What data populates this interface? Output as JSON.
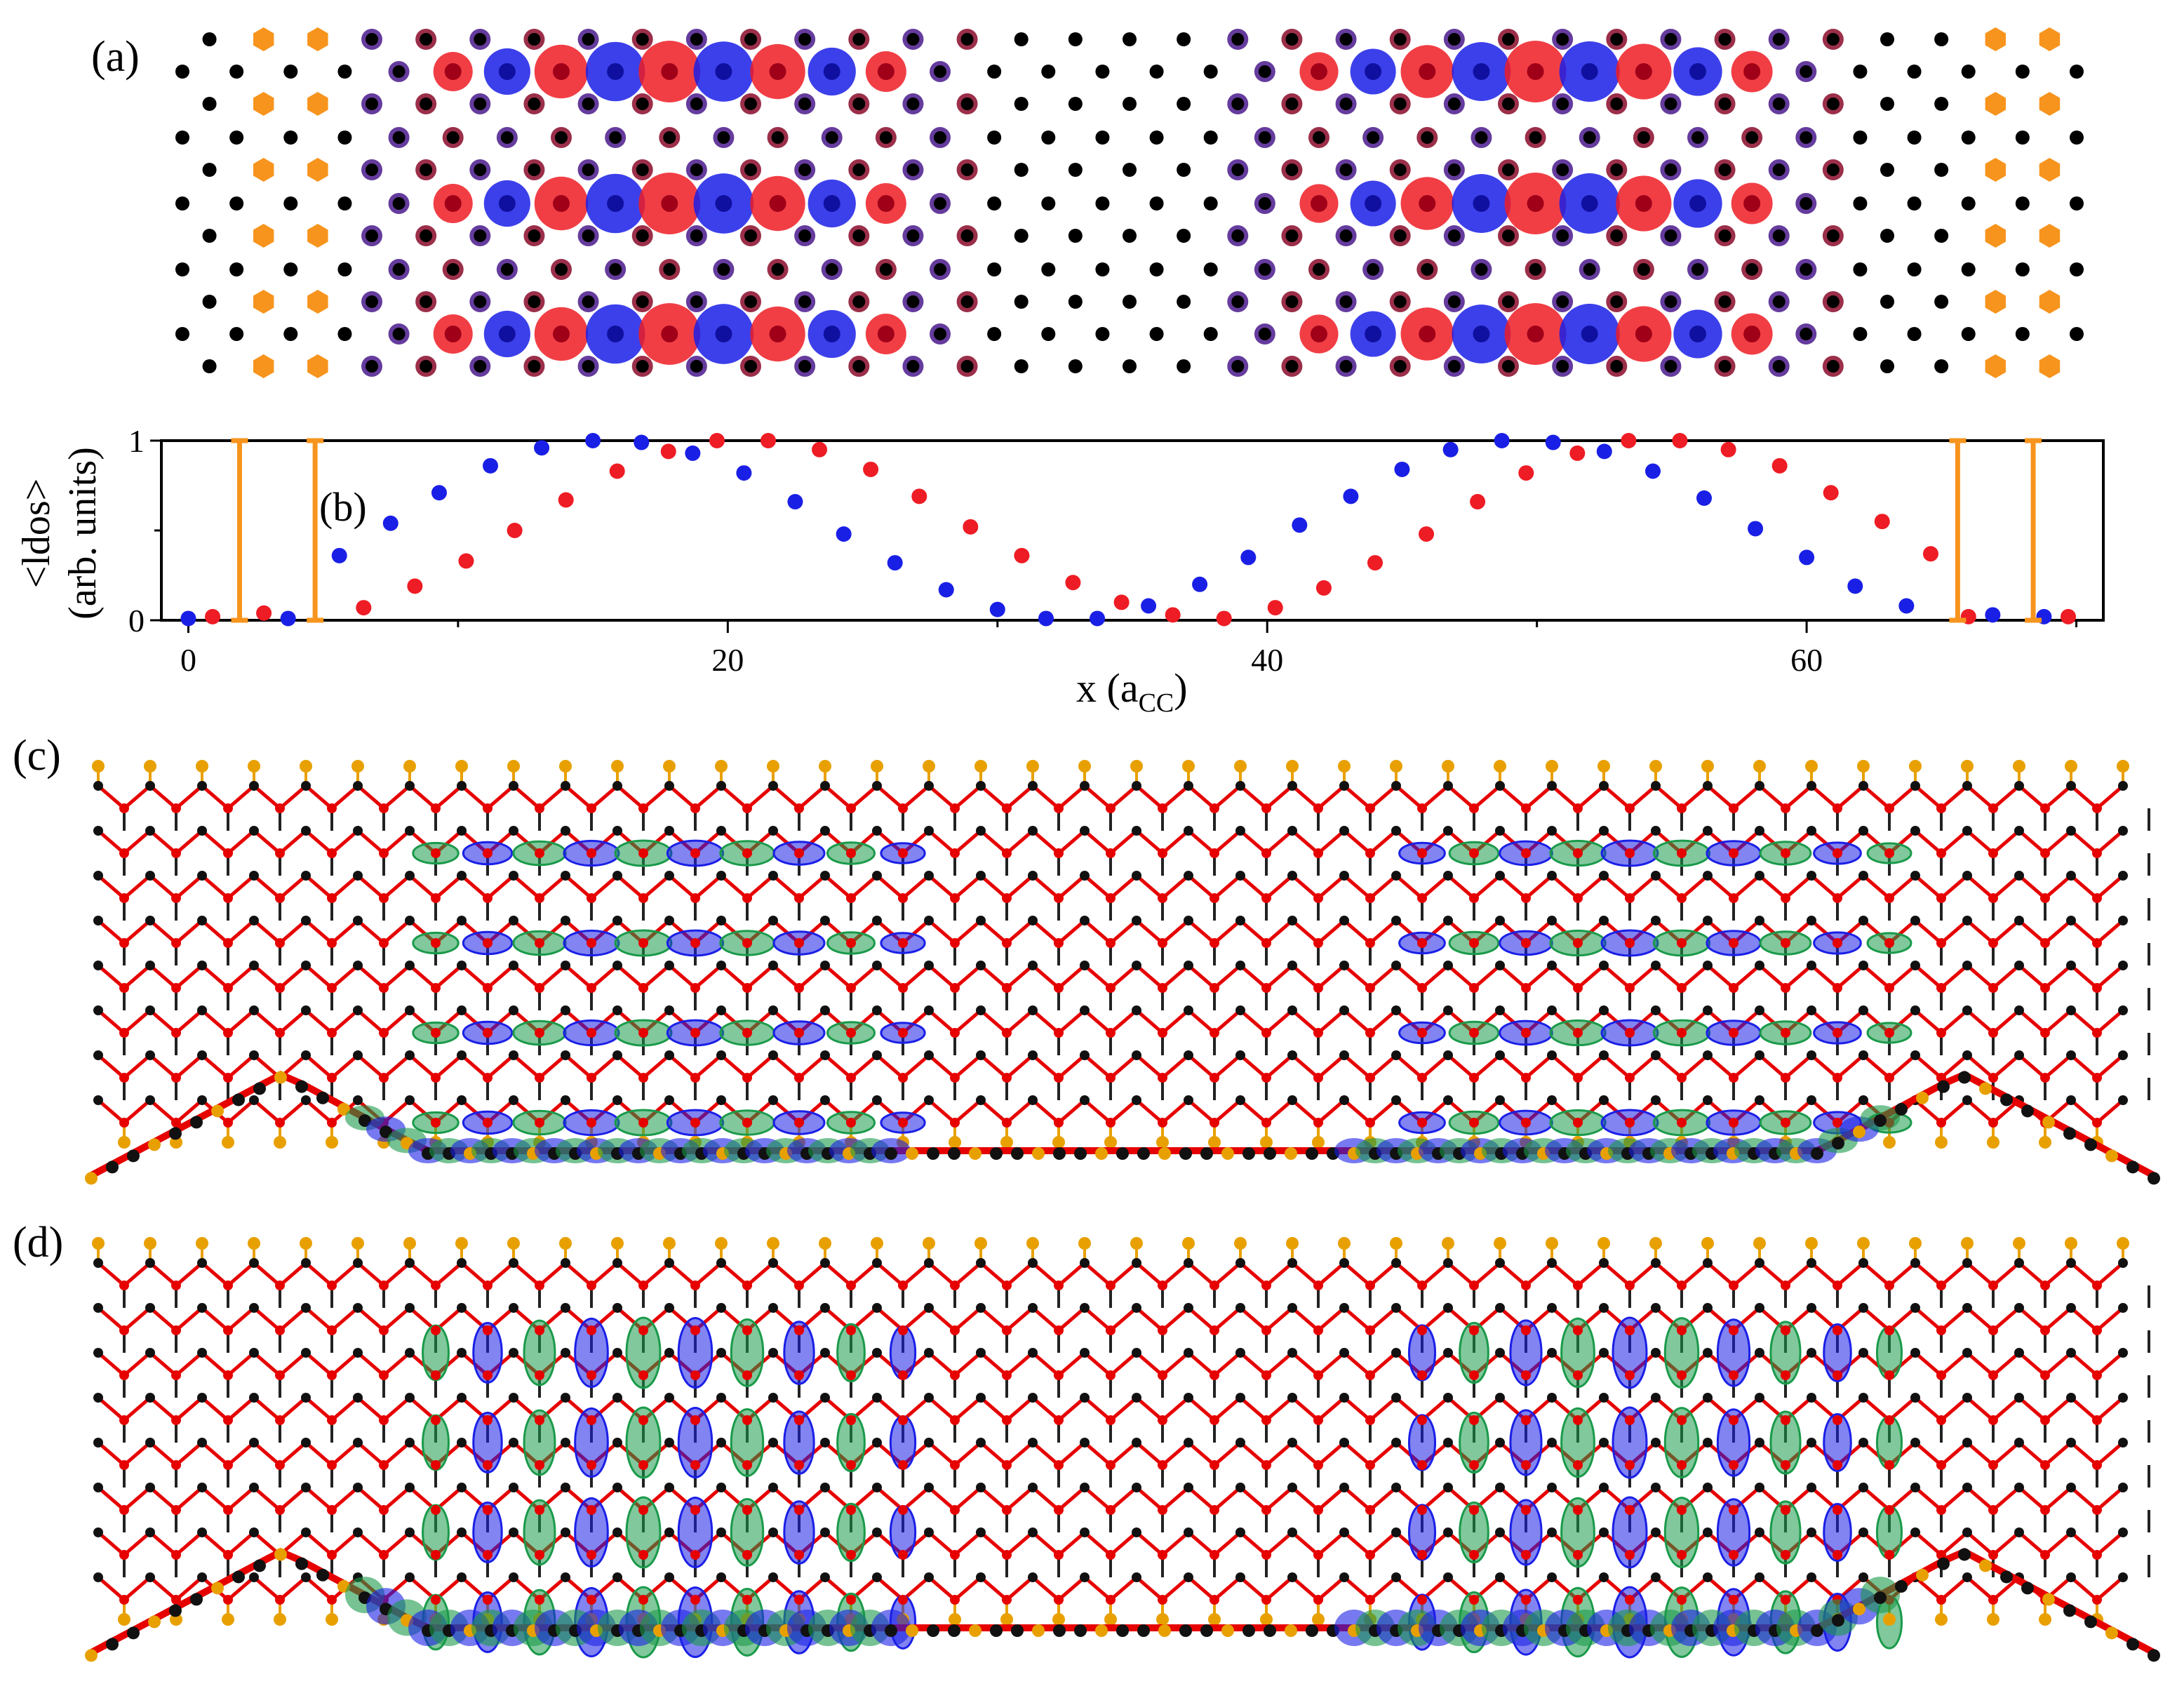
{
  "figure": {
    "panels": {
      "a": "(a)",
      "b": "(b)",
      "c": "(c)",
      "d": "(d)"
    }
  },
  "colors": {
    "blue": "#1a1fe6",
    "red": "#ee1c24",
    "orange": "#f7941d",
    "black": "#000000",
    "purple": "#4a1a8c",
    "maroon": "#8a0a2a",
    "green": "#1a9a4a",
    "bond_red": "#e60000",
    "hydrogen": "#e8a000"
  },
  "chart_data": {
    "type": "scatter",
    "xlabel": "x (a",
    "xlabel_sub": "CC",
    "xlabel_close": ")",
    "ylabel_line1": "<ldos>",
    "ylabel_line2": "(arb. units)",
    "xlim": [
      -1,
      71
    ],
    "ylim": [
      0,
      1
    ],
    "x_ticks": [
      0,
      20,
      40,
      60
    ],
    "y_ticks": [
      0,
      1
    ],
    "series": [
      {
        "color": "blue",
        "points": [
          [
            0,
            0.01
          ],
          [
            3.7,
            0.01
          ],
          [
            5.6,
            0.36
          ],
          [
            7.5,
            0.54
          ],
          [
            9.3,
            0.71
          ],
          [
            11.2,
            0.86
          ],
          [
            13.1,
            0.96
          ],
          [
            15,
            1.0
          ],
          [
            16.8,
            0.99
          ],
          [
            18.7,
            0.93
          ],
          [
            20.6,
            0.82
          ],
          [
            22.5,
            0.66
          ],
          [
            24.3,
            0.48
          ],
          [
            26.2,
            0.32
          ],
          [
            28.1,
            0.17
          ],
          [
            30,
            0.06
          ],
          [
            31.8,
            0.01
          ],
          [
            33.7,
            0.01
          ],
          [
            35.6,
            0.08
          ],
          [
            37.5,
            0.2
          ],
          [
            39.3,
            0.35
          ],
          [
            41.2,
            0.53
          ],
          [
            43.1,
            0.69
          ],
          [
            45,
            0.84
          ],
          [
            46.8,
            0.95
          ],
          [
            48.7,
            1.0
          ],
          [
            50.6,
            0.99
          ],
          [
            52.5,
            0.94
          ],
          [
            54.3,
            0.83
          ],
          [
            56.2,
            0.68
          ],
          [
            58.1,
            0.51
          ],
          [
            60,
            0.35
          ],
          [
            61.8,
            0.19
          ],
          [
            63.7,
            0.08
          ],
          [
            66.9,
            0.03
          ],
          [
            68.8,
            0.02
          ]
        ]
      },
      {
        "color": "red",
        "points": [
          [
            0.9,
            0.02
          ],
          [
            2.8,
            0.04
          ],
          [
            6.5,
            0.07
          ],
          [
            8.4,
            0.19
          ],
          [
            10.3,
            0.33
          ],
          [
            12.1,
            0.5
          ],
          [
            14,
            0.67
          ],
          [
            15.9,
            0.83
          ],
          [
            17.8,
            0.94
          ],
          [
            19.6,
            1.0
          ],
          [
            21.5,
            1.0
          ],
          [
            23.4,
            0.95
          ],
          [
            25.3,
            0.84
          ],
          [
            27.1,
            0.69
          ],
          [
            29,
            0.52
          ],
          [
            30.9,
            0.36
          ],
          [
            32.8,
            0.21
          ],
          [
            34.6,
            0.1
          ],
          [
            36.5,
            0.03
          ],
          [
            38.4,
            0.01
          ],
          [
            40.3,
            0.07
          ],
          [
            42.1,
            0.18
          ],
          [
            44,
            0.32
          ],
          [
            45.9,
            0.48
          ],
          [
            47.8,
            0.66
          ],
          [
            49.6,
            0.82
          ],
          [
            51.5,
            0.93
          ],
          [
            53.4,
            1.0
          ],
          [
            55.3,
            1.0
          ],
          [
            57.1,
            0.95
          ],
          [
            59,
            0.86
          ],
          [
            60.9,
            0.71
          ],
          [
            62.8,
            0.55
          ],
          [
            64.6,
            0.37
          ],
          [
            66,
            0.02
          ],
          [
            69.7,
            0.02
          ]
        ]
      },
      {
        "color": "orange",
        "type": "stem",
        "points": [
          [
            1.9,
            1.0
          ],
          [
            4.7,
            1.0
          ],
          [
            65.6,
            1.0
          ],
          [
            68.4,
            1.0
          ]
        ]
      }
    ]
  }
}
